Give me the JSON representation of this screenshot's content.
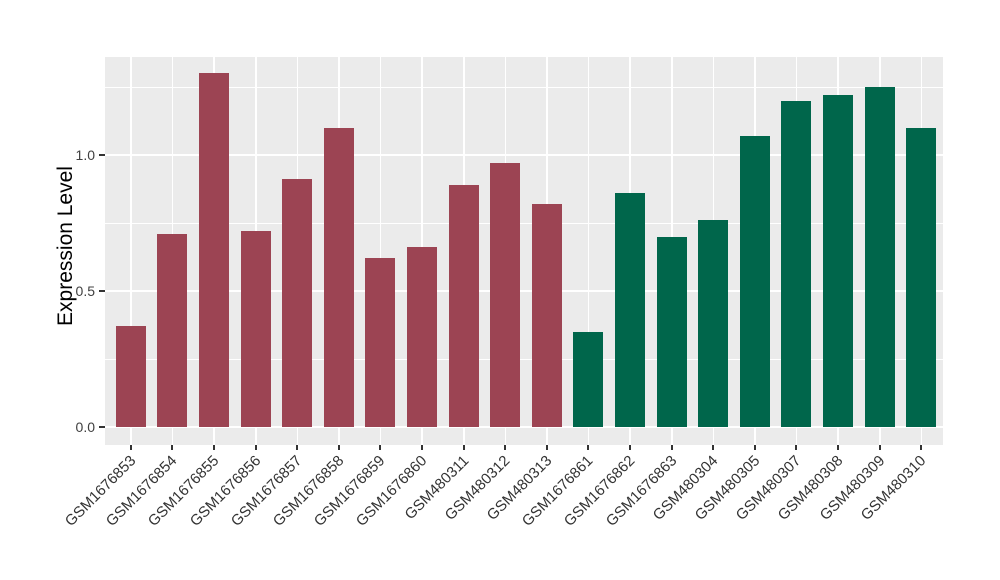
{
  "chart_data": {
    "type": "bar",
    "ylabel": "Expression Level",
    "categories": [
      "GSM1676853",
      "GSM1676854",
      "GSM1676855",
      "GSM1676856",
      "GSM1676857",
      "GSM1676858",
      "GSM1676859",
      "GSM1676860",
      "GSM480311",
      "GSM480312",
      "GSM480313",
      "GSM1676861",
      "GSM1676862",
      "GSM1676863",
      "GSM480304",
      "GSM480305",
      "GSM480307",
      "GSM480308",
      "GSM480309",
      "GSM480310"
    ],
    "values": [
      0.37,
      0.71,
      1.3,
      0.72,
      0.91,
      1.1,
      0.62,
      0.66,
      0.89,
      0.97,
      0.82,
      0.35,
      0.86,
      0.7,
      0.76,
      1.07,
      1.2,
      1.22,
      1.25,
      1.1
    ],
    "bar_colors": [
      "#9C4453",
      "#9C4453",
      "#9C4453",
      "#9C4453",
      "#9C4453",
      "#9C4453",
      "#9C4453",
      "#9C4453",
      "#9C4453",
      "#9C4453",
      "#9C4453",
      "#00664B",
      "#00664B",
      "#00664B",
      "#00664B",
      "#00664B",
      "#00664B",
      "#00664B",
      "#00664B",
      "#00664B"
    ],
    "group_colors": {
      "left_group": "#9C4453",
      "right_group": "#00664B"
    },
    "y_ticks": [
      {
        "value": 0.0,
        "label": "0.0"
      },
      {
        "value": 0.5,
        "label": "0.5"
      },
      {
        "value": 1.0,
        "label": "1.0"
      }
    ],
    "y_minor_ticks": [
      0.25,
      0.75,
      1.25
    ],
    "ylim": [
      -0.07,
      1.36
    ],
    "grid": "horizontal major+minor white, vertical white at category centers",
    "legend_position": "none"
  },
  "style": {
    "panel_background": "#EBEBEB",
    "gridline_color": "#FFFFFF",
    "axis_text_color": "#404040",
    "x_axis_text_color": "#333333",
    "axis_title_color": "#000000",
    "tick_mark_color": "#333333"
  }
}
